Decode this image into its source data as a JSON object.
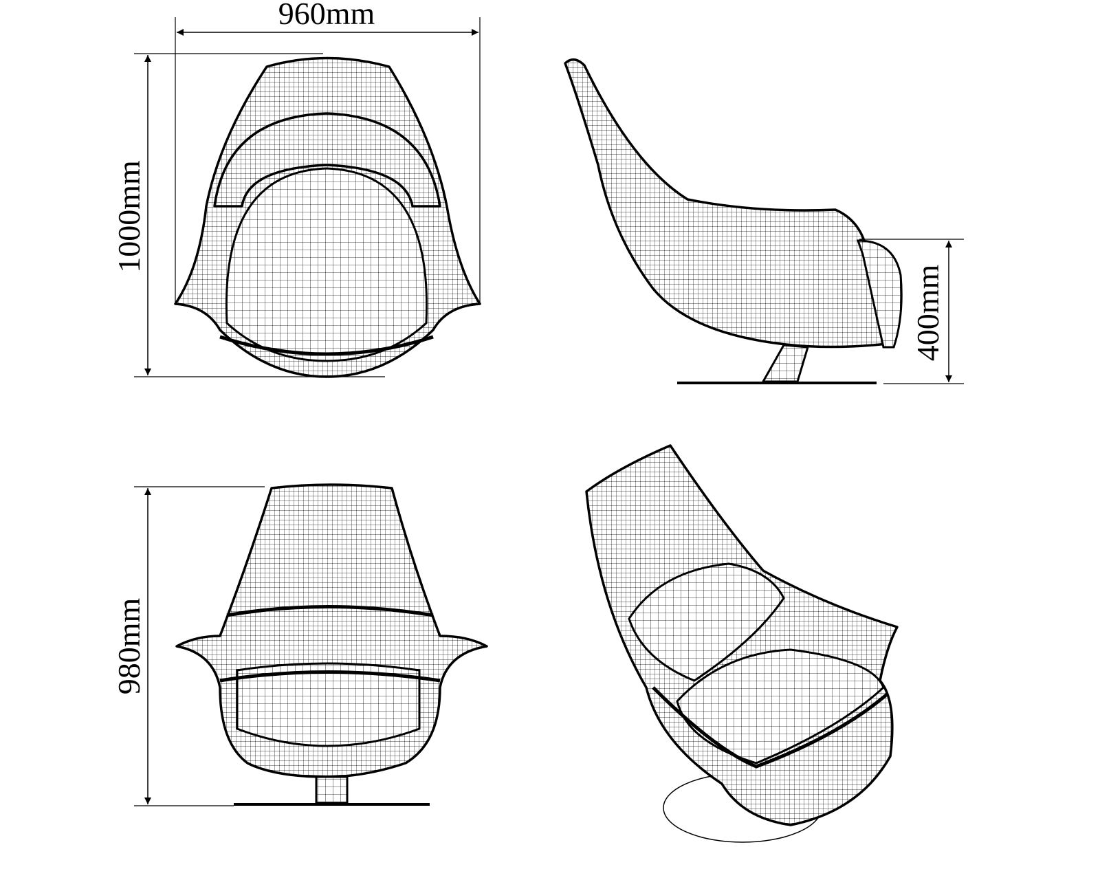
{
  "dimensions": {
    "overall_width": "960mm",
    "overall_height_rear": "1000mm",
    "seat_height": "400mm",
    "overall_height_front": "980mm"
  },
  "views": [
    "rear-view",
    "side-view",
    "front-view",
    "perspective-view"
  ],
  "colors": {
    "line": "#000000",
    "background": "#ffffff"
  }
}
